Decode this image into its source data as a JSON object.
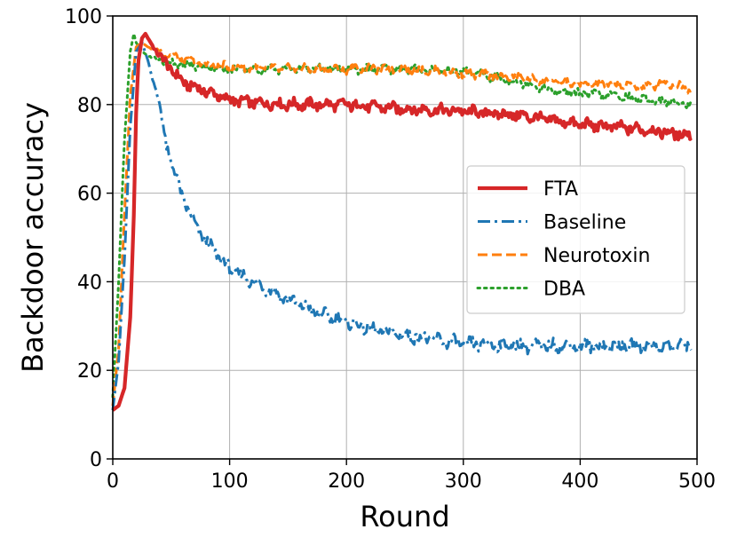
{
  "chart_data": {
    "type": "line",
    "title": "",
    "xlabel": "Round",
    "ylabel": "Backdoor accuracy",
    "xlim": [
      0,
      500
    ],
    "ylim": [
      0,
      100
    ],
    "xticks": [
      0,
      100,
      200,
      300,
      400,
      500
    ],
    "yticks": [
      0,
      20,
      40,
      60,
      80,
      100
    ],
    "grid": true,
    "legend_position": "center-right",
    "series": [
      {
        "name": "FTA",
        "color": "#d62728",
        "style": "solid",
        "x": [
          0,
          5,
          10,
          15,
          18,
          20,
          22,
          25,
          28,
          30,
          35,
          40,
          50,
          60,
          80,
          100,
          120,
          150,
          200,
          250,
          300,
          350,
          400,
          450,
          495
        ],
        "y": [
          11,
          12,
          16,
          32,
          55,
          78,
          90,
          95,
          96,
          95,
          93,
          91,
          88,
          85,
          83,
          81,
          80.5,
          80,
          80,
          79,
          78.5,
          77.5,
          75.5,
          74.5,
          73
        ]
      },
      {
        "name": "Baseline",
        "color": "#1f77b4",
        "style": "dashdot",
        "x": [
          0,
          5,
          10,
          15,
          20,
          25,
          30,
          35,
          40,
          45,
          50,
          60,
          70,
          80,
          100,
          120,
          150,
          175,
          200,
          225,
          250,
          300,
          350,
          400,
          450,
          495
        ],
        "y": [
          11,
          22,
          45,
          75,
          92,
          94,
          90,
          85,
          80,
          72,
          67,
          59,
          53,
          49,
          43,
          40,
          36,
          33,
          31,
          29,
          28,
          26,
          25.5,
          25.5,
          25.5,
          25.5
        ]
      },
      {
        "name": "Neurotoxin",
        "color": "#ff7f0e",
        "style": "dashed",
        "x": [
          0,
          5,
          10,
          15,
          20,
          25,
          30,
          40,
          60,
          80,
          100,
          150,
          200,
          250,
          300,
          350,
          380,
          400,
          430,
          460,
          470,
          495
        ],
        "y": [
          12,
          25,
          55,
          82,
          93,
          94,
          93,
          92,
          90,
          89,
          88.5,
          88,
          88,
          88,
          87,
          86,
          85,
          84.5,
          84.5,
          84,
          85,
          83.5
        ]
      },
      {
        "name": "DBA",
        "color": "#2ca02c",
        "style": "dotted",
        "x": [
          0,
          5,
          10,
          15,
          18,
          20,
          25,
          30,
          40,
          60,
          80,
          100,
          150,
          200,
          250,
          300,
          350,
          380,
          400,
          430,
          460,
          495
        ],
        "y": [
          14,
          40,
          72,
          92,
          96,
          94,
          92,
          91,
          90,
          89,
          88.5,
          88,
          88,
          88,
          88,
          87.5,
          85,
          83,
          82.5,
          82,
          81,
          80
        ]
      }
    ]
  }
}
